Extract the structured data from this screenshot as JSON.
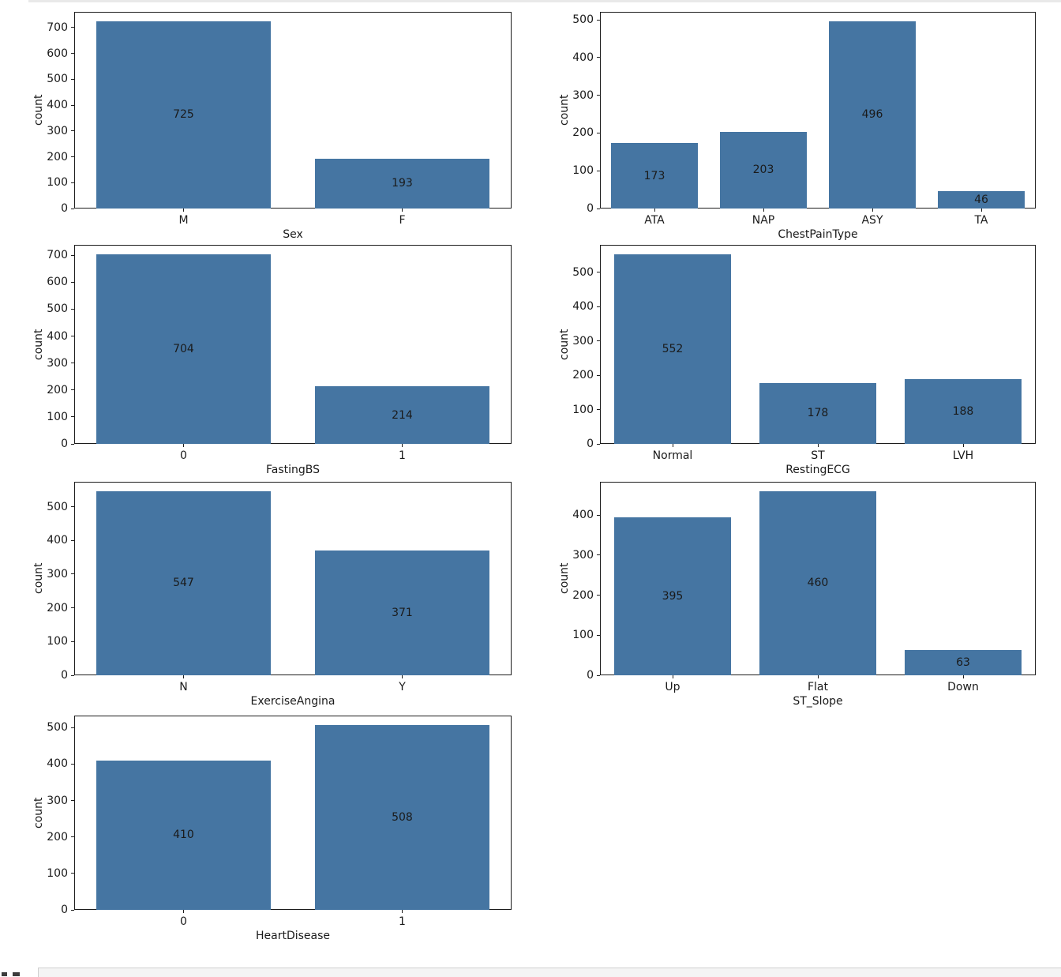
{
  "page": {
    "background": "#ffffff",
    "figure_background": "#ffffff"
  },
  "colors": {
    "bar": "#4575a2",
    "axis_line": "#1c1c1c",
    "text": "#1a1a1a",
    "top_strip": "#e9e9e9",
    "next_cell_background": "#f4f4f4",
    "next_cell_border": "#cfcfcf"
  },
  "chart_data": [
    {
      "type": "bar",
      "xlabel": "Sex",
      "ylabel": "count",
      "categories": [
        "M",
        "F"
      ],
      "values": [
        725,
        193
      ],
      "yticks": [
        0,
        100,
        200,
        300,
        400,
        500,
        600,
        700
      ],
      "ylim": [
        0,
        761
      ],
      "grid": false,
      "legend": null
    },
    {
      "type": "bar",
      "xlabel": "ChestPainType",
      "ylabel": "count",
      "categories": [
        "ATA",
        "NAP",
        "ASY",
        "TA"
      ],
      "values": [
        173,
        203,
        496,
        46
      ],
      "yticks": [
        0,
        100,
        200,
        300,
        400,
        500
      ],
      "ylim": [
        0,
        521
      ],
      "grid": false,
      "legend": null
    },
    {
      "type": "bar",
      "xlabel": "FastingBS",
      "ylabel": "count",
      "categories": [
        "0",
        "1"
      ],
      "values": [
        704,
        214
      ],
      "yticks": [
        0,
        100,
        200,
        300,
        400,
        500,
        600,
        700
      ],
      "ylim": [
        0,
        739
      ],
      "grid": false,
      "legend": null
    },
    {
      "type": "bar",
      "xlabel": "RestingECG",
      "ylabel": "count",
      "categories": [
        "Normal",
        "ST",
        "LVH"
      ],
      "values": [
        552,
        178,
        188
      ],
      "yticks": [
        0,
        100,
        200,
        300,
        400,
        500
      ],
      "ylim": [
        0,
        580
      ],
      "grid": false,
      "legend": null
    },
    {
      "type": "bar",
      "xlabel": "ExerciseAngina",
      "ylabel": "count",
      "categories": [
        "N",
        "Y"
      ],
      "values": [
        547,
        371
      ],
      "yticks": [
        0,
        100,
        200,
        300,
        400,
        500
      ],
      "ylim": [
        0,
        574
      ],
      "grid": false,
      "legend": null
    },
    {
      "type": "bar",
      "xlabel": "ST_Slope",
      "ylabel": "count",
      "categories": [
        "Up",
        "Flat",
        "Down"
      ],
      "values": [
        395,
        460,
        63
      ],
      "yticks": [
        0,
        100,
        200,
        300,
        400
      ],
      "ylim": [
        0,
        483
      ],
      "grid": false,
      "legend": null
    },
    {
      "type": "bar",
      "xlabel": "HeartDisease",
      "ylabel": "count",
      "categories": [
        "0",
        "1"
      ],
      "values": [
        410,
        508
      ],
      "yticks": [
        0,
        100,
        200,
        300,
        400,
        500
      ],
      "ylim": [
        0,
        533
      ],
      "grid": false,
      "legend": null
    }
  ]
}
